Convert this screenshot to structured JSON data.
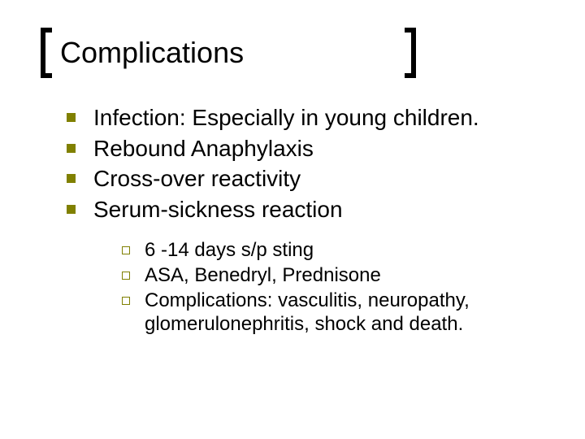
{
  "title": "Complications",
  "colors": {
    "bullet": "#808000",
    "sub_bullet_border": "#808000",
    "text": "#000000",
    "background": "#ffffff",
    "bracket": "#000000"
  },
  "typography": {
    "title_fontsize": 36,
    "l1_fontsize": 28,
    "l2_fontsize": 24,
    "font_family": "Arial"
  },
  "bullets": [
    {
      "text": "Infection:  Especially in young children."
    },
    {
      "text": "Rebound Anaphylaxis"
    },
    {
      "text": "Cross-over reactivity"
    },
    {
      "text": "Serum-sickness reaction"
    }
  ],
  "sub_bullets": [
    {
      "text": "6 -14 days s/p sting"
    },
    {
      "text": "ASA, Benedryl, Prednisone"
    },
    {
      "text": "Complications:  vasculitis, neuropathy, glomerulonephritis, shock and death."
    }
  ]
}
